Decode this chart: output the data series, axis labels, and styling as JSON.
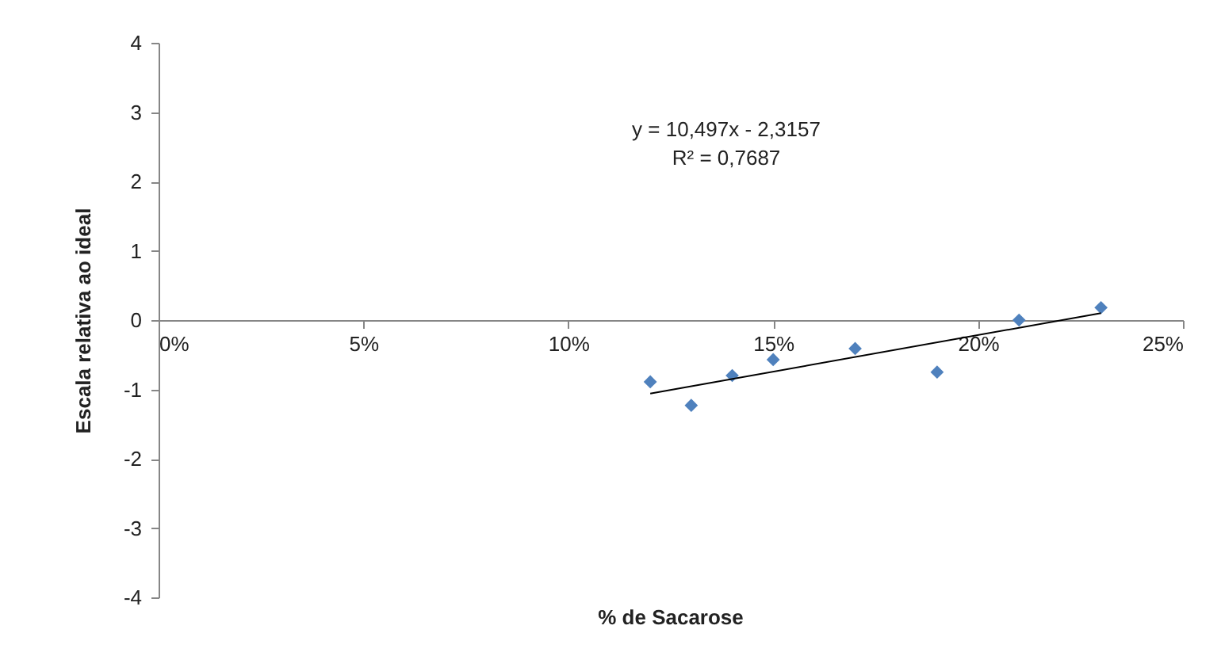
{
  "chart_data": {
    "type": "scatter",
    "xlabel": "% de Sacarose",
    "ylabel": "Escala relativa ao ideal",
    "x": [
      0.12,
      0.13,
      0.14,
      0.15,
      0.17,
      0.19,
      0.21,
      0.23
    ],
    "series": [
      {
        "type": "scatter",
        "color": "#4f81bd",
        "marker": "diamond",
        "values": [
          -0.89,
          -1.23,
          -0.8,
          -0.57,
          -0.41,
          -0.75,
          0.0,
          0.18
        ]
      },
      {
        "type": "line",
        "color": "#000000",
        "x": [
          0.12,
          0.23
        ],
        "values": [
          -1.06,
          0.1
        ]
      }
    ],
    "xlim": [
      0,
      0.25
    ],
    "xticks": [
      {
        "value": 0,
        "label": "0%"
      },
      {
        "value": 0.05,
        "label": "5%"
      },
      {
        "value": 0.1,
        "label": "10%"
      },
      {
        "value": 0.15,
        "label": "15%"
      },
      {
        "value": 0.2,
        "label": "20%"
      },
      {
        "value": 0.25,
        "label": "25%"
      }
    ],
    "ylim": [
      -4,
      4
    ],
    "yticks": [
      -4,
      -3,
      -2,
      -1,
      0,
      1,
      2,
      3,
      4
    ],
    "annotations": [
      "y = 10,497x - 2,3157",
      "R² = 0,7687"
    ],
    "grid": false,
    "legend": false
  }
}
